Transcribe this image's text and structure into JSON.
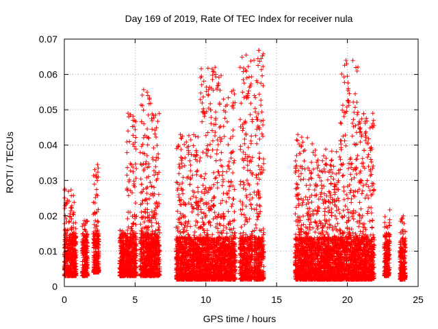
{
  "chart_data": {
    "type": "scatter",
    "title": "Day 169 of 2019, Rate Of TEC Index for receiver nula",
    "xlabel": "GPS time / hours",
    "ylabel": "ROTI / TECUs",
    "xlim": [
      0,
      25
    ],
    "ylim": [
      0,
      0.07
    ],
    "xticks": [
      0,
      5,
      10,
      15,
      20,
      25
    ],
    "xtick_labels": [
      "0",
      "5",
      "10",
      "15",
      "20",
      "25"
    ],
    "yticks": [
      0,
      0.01,
      0.02,
      0.03,
      0.04,
      0.05,
      0.06,
      0.07
    ],
    "ytick_labels": [
      "0",
      "0.01",
      "0.02",
      "0.03",
      "0.04",
      "0.05",
      "0.06",
      "0.07"
    ],
    "grid": true,
    "marker": "+",
    "color": "#ff0000",
    "clusters": [
      {
        "x_start": 0.0,
        "x_end": 0.7,
        "y_low": 0.003,
        "y_high": 0.028
      },
      {
        "x_start": 0.7,
        "x_end": 0.85,
        "y_low": 0.003,
        "y_high": 0.02
      },
      {
        "x_start": 1.25,
        "x_end": 1.65,
        "y_low": 0.003,
        "y_high": 0.019
      },
      {
        "x_start": 2.05,
        "x_end": 2.45,
        "y_low": 0.004,
        "y_high": 0.034
      },
      {
        "x_start": 3.9,
        "x_end": 4.4,
        "y_low": 0.003,
        "y_high": 0.016
      },
      {
        "x_start": 4.4,
        "x_end": 5.1,
        "y_low": 0.003,
        "y_high": 0.049
      },
      {
        "x_start": 5.35,
        "x_end": 6.1,
        "y_low": 0.003,
        "y_high": 0.056
      },
      {
        "x_start": 6.1,
        "x_end": 6.75,
        "y_low": 0.003,
        "y_high": 0.049
      },
      {
        "x_start": 7.9,
        "x_end": 9.6,
        "y_low": 0.002,
        "y_high": 0.043
      },
      {
        "x_start": 9.6,
        "x_end": 11.2,
        "y_low": 0.002,
        "y_high": 0.062
      },
      {
        "x_start": 11.2,
        "x_end": 12.1,
        "y_low": 0.002,
        "y_high": 0.057
      },
      {
        "x_start": 12.4,
        "x_end": 13.3,
        "y_low": 0.002,
        "y_high": 0.065
      },
      {
        "x_start": 13.4,
        "x_end": 14.1,
        "y_low": 0.002,
        "y_high": 0.067
      },
      {
        "x_start": 16.3,
        "x_end": 18.2,
        "y_low": 0.002,
        "y_high": 0.043
      },
      {
        "x_start": 18.2,
        "x_end": 19.5,
        "y_low": 0.002,
        "y_high": 0.039
      },
      {
        "x_start": 19.5,
        "x_end": 20.8,
        "y_low": 0.002,
        "y_high": 0.064
      },
      {
        "x_start": 20.8,
        "x_end": 21.9,
        "y_low": 0.002,
        "y_high": 0.049
      },
      {
        "x_start": 22.6,
        "x_end": 23.0,
        "y_low": 0.003,
        "y_high": 0.022
      },
      {
        "x_start": 23.7,
        "x_end": 24.1,
        "y_low": 0.002,
        "y_high": 0.02
      }
    ],
    "outliers": [
      [
        4.5,
        0.049
      ],
      [
        4.55,
        0.048
      ],
      [
        4.5,
        0.044
      ],
      [
        4.6,
        0.041
      ],
      [
        5.85,
        0.055
      ],
      [
        5.9,
        0.054
      ],
      [
        6.45,
        0.0485
      ],
      [
        8.2,
        0.043
      ],
      [
        8.25,
        0.042
      ],
      [
        10.05,
        0.0495
      ],
      [
        10.65,
        0.062
      ],
      [
        10.7,
        0.06
      ],
      [
        10.9,
        0.057
      ],
      [
        11.0,
        0.0555
      ],
      [
        11.25,
        0.053
      ],
      [
        11.4,
        0.051
      ],
      [
        12.85,
        0.0655
      ],
      [
        12.9,
        0.059
      ],
      [
        12.95,
        0.054
      ],
      [
        13.75,
        0.0668
      ],
      [
        13.8,
        0.0637
      ],
      [
        13.6,
        0.0445
      ],
      [
        16.5,
        0.043
      ],
      [
        19.9,
        0.064
      ],
      [
        19.95,
        0.063
      ],
      [
        20.0,
        0.0595
      ],
      [
        20.05,
        0.0555
      ],
      [
        20.1,
        0.052
      ],
      [
        21.8,
        0.049
      ],
      [
        21.85,
        0.047
      ],
      [
        21.8,
        0.045
      ],
      [
        23.95,
        0.02
      ],
      [
        2.4,
        0.031
      ],
      [
        2.35,
        0.0345
      ]
    ]
  }
}
